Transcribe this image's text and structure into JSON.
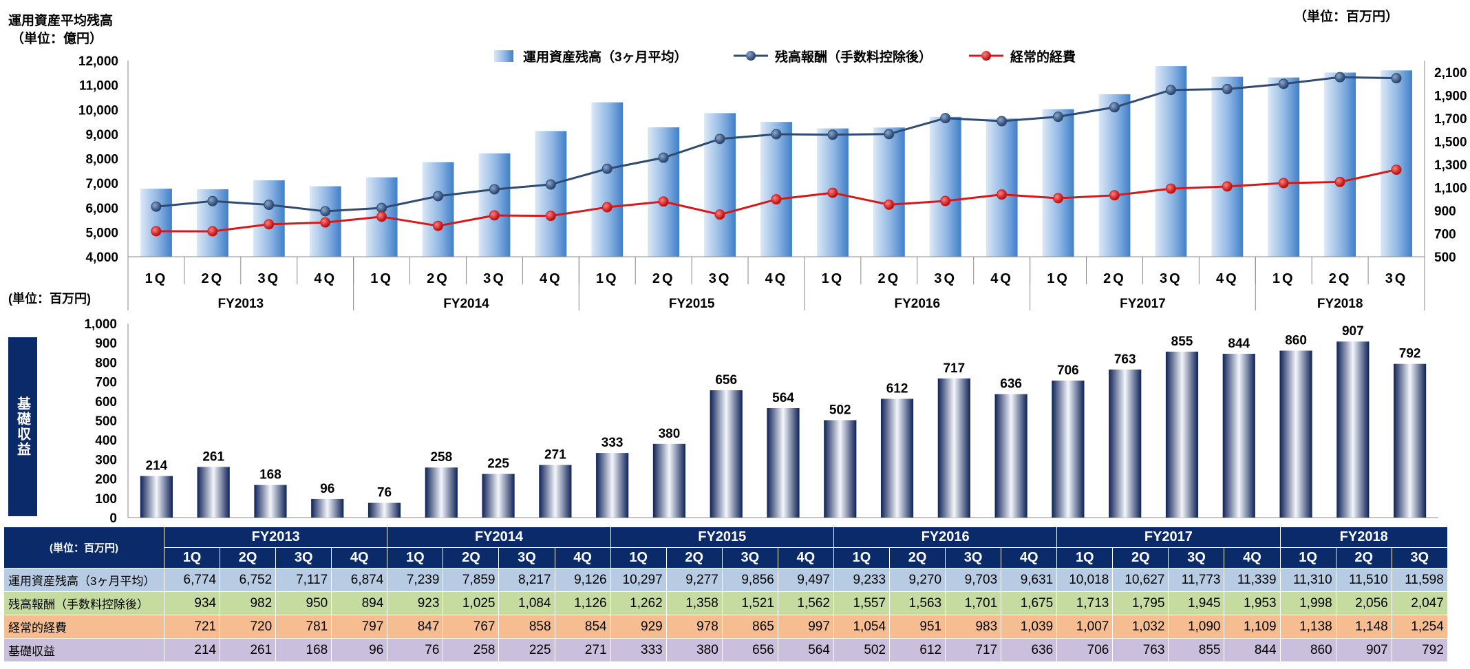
{
  "labels": {
    "top_left_unit_line1": "運用資産平均残高",
    "top_left_unit_line2": "（単位：億円）",
    "top_right_unit": "（単位：百万円）",
    "bottom_left_unit": "(単位：百万円)",
    "side_label": "基礎収益",
    "table_corner": "(単位：百万円)"
  },
  "colors": {
    "navy": "#0b2a6a",
    "aum_bar_light": "#dbe8f6",
    "aum_bar_dark": "#3f7fc9",
    "fee_line": "#2f4b72",
    "expense_line": "#d81818",
    "base_bar_dark": "#0e2257",
    "base_bar_light": "#ffffff"
  },
  "quarters": [
    "1Q",
    "2Q",
    "3Q",
    "4Q",
    "1Q",
    "2Q",
    "3Q",
    "4Q",
    "1Q",
    "2Q",
    "3Q",
    "4Q",
    "1Q",
    "2Q",
    "3Q",
    "4Q",
    "1Q",
    "2Q",
    "3Q",
    "4Q",
    "1Q",
    "2Q",
    "3Q"
  ],
  "fiscal_years": [
    {
      "label": "FY2013",
      "span": 4
    },
    {
      "label": "FY2014",
      "span": 4
    },
    {
      "label": "FY2015",
      "span": 4
    },
    {
      "label": "FY2016",
      "span": 4
    },
    {
      "label": "FY2017",
      "span": 4
    },
    {
      "label": "FY2018",
      "span": 3
    }
  ],
  "chart_data": [
    {
      "type": "bar",
      "title": "",
      "legend_position": "top",
      "left_axis": {
        "label": "運用資産平均残高（単位：億円）",
        "ylim": [
          4000,
          12000
        ],
        "ticks": [
          "4,000",
          "5,000",
          "6,000",
          "7,000",
          "8,000",
          "9,000",
          "10,000",
          "11,000",
          "12,000"
        ]
      },
      "right_axis": {
        "label": "（単位：百万円）",
        "ylim": [
          500,
          2200
        ],
        "ticks": [
          "500",
          "700",
          "900",
          "1,100",
          "1,300",
          "1,500",
          "1,700",
          "1,900",
          "2,100"
        ]
      },
      "series": [
        {
          "name": "運用資産残高（3ヶ月平均）",
          "type": "bar",
          "axis": "left",
          "values": [
            6774,
            6752,
            7117,
            6874,
            7239,
            7859,
            8217,
            9126,
            10297,
            9277,
            9856,
            9497,
            9233,
            9270,
            9703,
            9631,
            10018,
            10627,
            11773,
            11339,
            11310,
            11510,
            11598
          ]
        },
        {
          "name": "残高報酬（手数料控除後）",
          "type": "line",
          "axis": "right",
          "values": [
            934,
            982,
            950,
            894,
            923,
            1025,
            1084,
            1126,
            1262,
            1358,
            1521,
            1562,
            1557,
            1563,
            1701,
            1675,
            1713,
            1795,
            1945,
            1953,
            1998,
            2056,
            2047
          ]
        },
        {
          "name": "経常的経費",
          "type": "line",
          "axis": "right",
          "values": [
            721,
            720,
            781,
            797,
            847,
            767,
            858,
            854,
            929,
            978,
            865,
            997,
            1054,
            951,
            983,
            1039,
            1007,
            1032,
            1090,
            1109,
            1138,
            1148,
            1254
          ]
        }
      ]
    },
    {
      "type": "bar",
      "title": "",
      "ylabel": "基礎収益",
      "ylim": [
        0,
        1000
      ],
      "ticks": [
        "0",
        "100",
        "200",
        "300",
        "400",
        "500",
        "600",
        "700",
        "800",
        "900",
        "1,000"
      ],
      "series": [
        {
          "name": "基礎収益",
          "values": [
            214,
            261,
            168,
            96,
            76,
            258,
            225,
            271,
            333,
            380,
            656,
            564,
            502,
            612,
            717,
            636,
            706,
            763,
            855,
            844,
            860,
            907,
            792
          ]
        }
      ]
    }
  ],
  "table": {
    "rows": [
      {
        "label": "運用資産残高（3ヶ月平均）",
        "cells": [
          "6,774",
          "6,752",
          "7,117",
          "6,874",
          "7,239",
          "7,859",
          "8,217",
          "9,126",
          "10,297",
          "9,277",
          "9,856",
          "9,497",
          "9,233",
          "9,270",
          "9,703",
          "9,631",
          "10,018",
          "10,627",
          "11,773",
          "11,339",
          "11,310",
          "11,510",
          "11,598"
        ]
      },
      {
        "label": "残高報酬（手数料控除後）",
        "cells": [
          "934",
          "982",
          "950",
          "894",
          "923",
          "1,025",
          "1,084",
          "1,126",
          "1,262",
          "1,358",
          "1,521",
          "1,562",
          "1,557",
          "1,563",
          "1,701",
          "1,675",
          "1,713",
          "1,795",
          "1,945",
          "1,953",
          "1,998",
          "2,056",
          "2,047"
        ]
      },
      {
        "label": "経常的経費",
        "cells": [
          "721",
          "720",
          "781",
          "797",
          "847",
          "767",
          "858",
          "854",
          "929",
          "978",
          "865",
          "997",
          "1,054",
          "951",
          "983",
          "1,039",
          "1,007",
          "1,032",
          "1,090",
          "1,109",
          "1,138",
          "1,148",
          "1,254"
        ]
      },
      {
        "label": "基礎収益",
        "cells": [
          "214",
          "261",
          "168",
          "96",
          "76",
          "258",
          "225",
          "271",
          "333",
          "380",
          "656",
          "564",
          "502",
          "612",
          "717",
          "636",
          "706",
          "763",
          "855",
          "844",
          "860",
          "907",
          "792"
        ]
      }
    ]
  }
}
